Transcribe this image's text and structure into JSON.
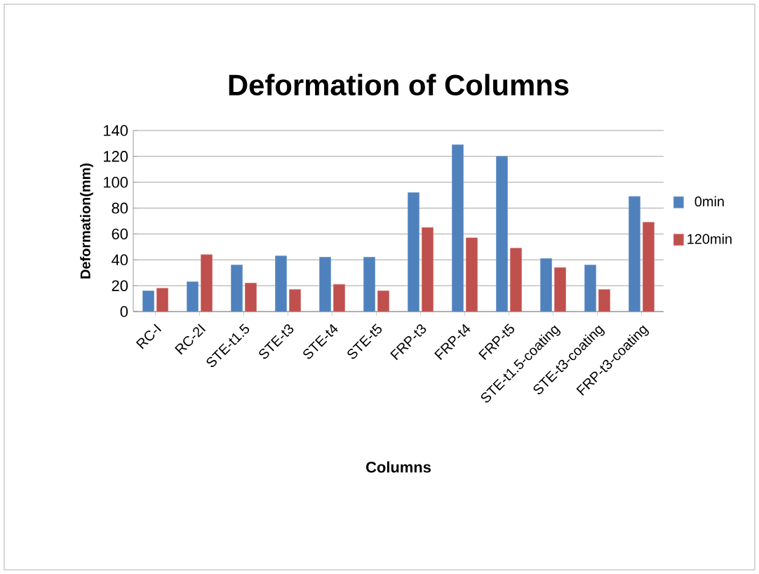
{
  "chart_data": {
    "type": "bar",
    "title": "Deformation of Columns",
    "xlabel": "Columns",
    "ylabel": "Deformation(mm)",
    "categories": [
      "RC-I",
      "RC-2I",
      "STE-t1.5",
      "STE-t3",
      "STE-t4",
      "STE-t5",
      "FRP-t3",
      "FRP-t4",
      "FRP-t5",
      "STE-t1.5-coating",
      "STE-t3-coating",
      "FRP-t3-coating"
    ],
    "series": [
      {
        "name": "0min",
        "color": "#4f81bd",
        "values": [
          16,
          23,
          36,
          43,
          42,
          42,
          92,
          129,
          120,
          41,
          36,
          89
        ]
      },
      {
        "name": "120min",
        "color": "#c0504d",
        "values": [
          18,
          44,
          22,
          17,
          21,
          16,
          65,
          57,
          49,
          34,
          17,
          69
        ]
      }
    ],
    "ylim": [
      0,
      140
    ],
    "yticks": [
      0,
      20,
      40,
      60,
      80,
      100,
      120,
      140
    ],
    "grid": "y",
    "legend": "right"
  }
}
